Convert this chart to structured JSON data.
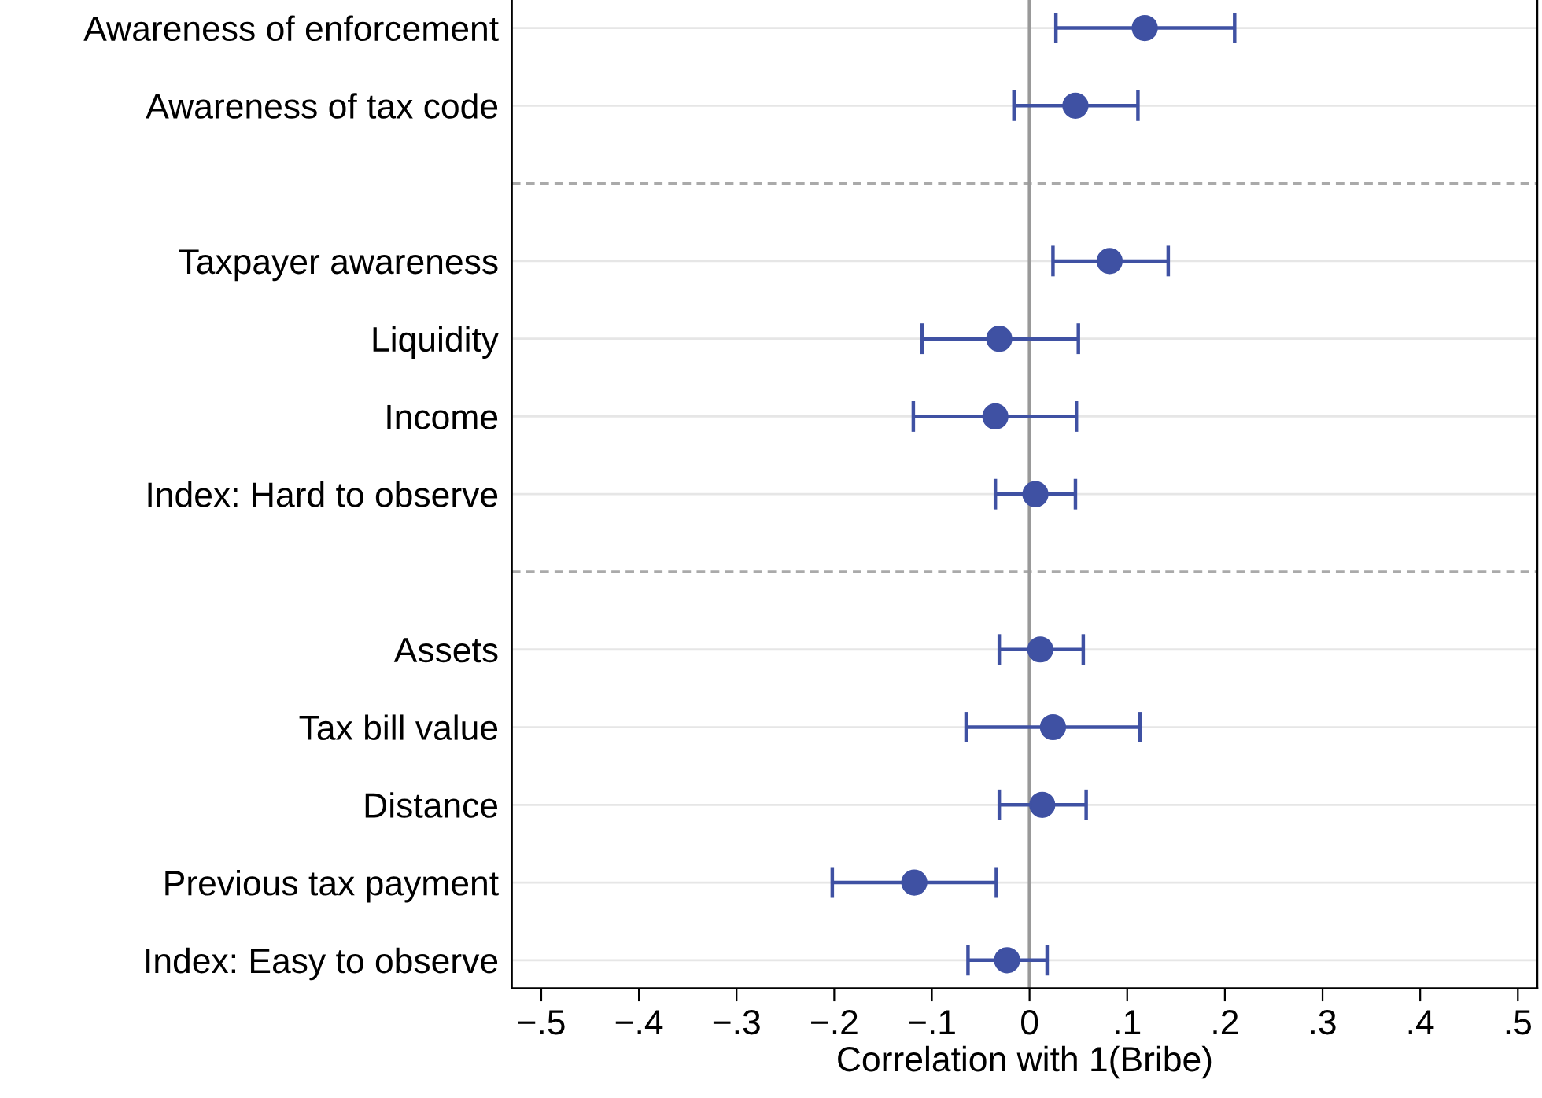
{
  "chart_data": {
    "type": "scatter",
    "orientation": "horizontal",
    "xlabel": "Correlation with 1(Bribe)",
    "categories": [
      "Awareness of enforcement",
      "Awareness of tax code",
      null,
      "Taxpayer awareness",
      "Liquidity",
      "Income",
      "Index: Hard to observe",
      null,
      "Assets",
      "Tax bill value",
      "Distance",
      "Previous tax payment",
      "Index: Easy to observe"
    ],
    "series": [
      {
        "color": "#3f51a3",
        "values": [
          0.118,
          0.047,
          null,
          0.082,
          -0.031,
          -0.035,
          0.006,
          null,
          0.011,
          0.024,
          0.013,
          -0.118,
          -0.023
        ],
        "errors": [
          [
            0.027,
            0.21
          ],
          [
            -0.016,
            0.111
          ],
          null,
          [
            0.024,
            0.142
          ],
          [
            -0.11,
            0.05
          ],
          [
            -0.119,
            0.048
          ],
          [
            -0.035,
            0.047
          ],
          null,
          [
            -0.031,
            0.055
          ],
          [
            -0.065,
            0.113
          ],
          [
            -0.031,
            0.058
          ],
          [
            -0.202,
            -0.034
          ],
          [
            -0.063,
            0.018
          ]
        ]
      }
    ],
    "xlim": [
      -0.53,
      0.52
    ],
    "xticks": [
      {
        "value": -0.5,
        "label": "−.5"
      },
      {
        "value": -0.4,
        "label": "−.4"
      },
      {
        "value": -0.3,
        "label": "−.3"
      },
      {
        "value": -0.2,
        "label": "−.2"
      },
      {
        "value": -0.1,
        "label": "−.1"
      },
      {
        "value": 0,
        "label": "0"
      },
      {
        "value": 0.1,
        "label": ".1"
      },
      {
        "value": 0.2,
        "label": ".2"
      },
      {
        "value": 0.3,
        "label": ".3"
      },
      {
        "value": 0.4,
        "label": ".4"
      },
      {
        "value": 0.5,
        "label": ".5"
      }
    ],
    "ref_lines": [
      {
        "axis": "x",
        "value": 0,
        "color": "#999999",
        "line_style": "solid"
      }
    ],
    "grid": "y",
    "marker": "circle"
  }
}
